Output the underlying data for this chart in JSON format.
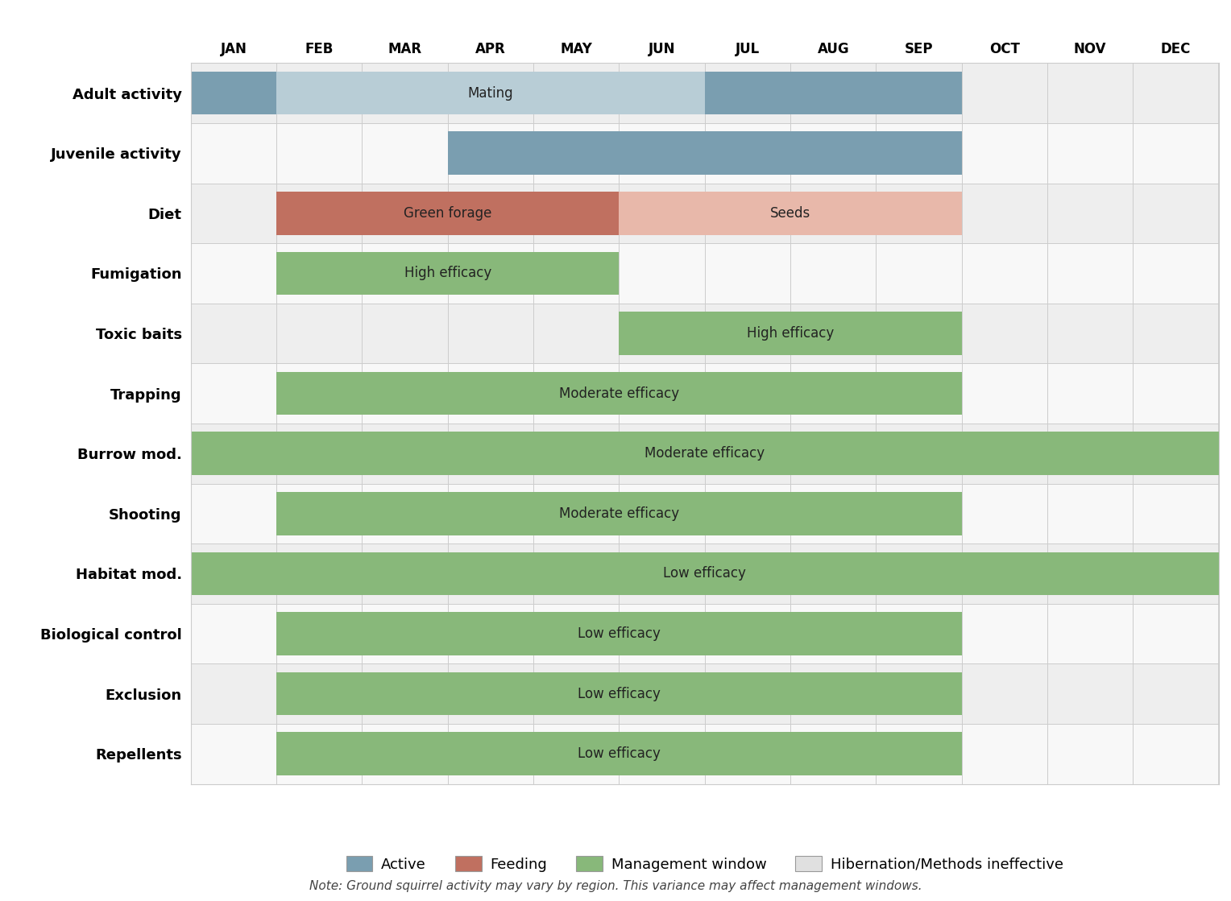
{
  "months": [
    "JAN",
    "FEB",
    "MAR",
    "APR",
    "MAY",
    "JUN",
    "JUL",
    "AUG",
    "SEP",
    "OCT",
    "NOV",
    "DEC"
  ],
  "rows": [
    {
      "label": "Adult activity",
      "bars": [
        {
          "start": 0,
          "end": 1,
          "color": "#7a9eb0",
          "text": "",
          "text_color": "#222222"
        },
        {
          "start": 1,
          "end": 6,
          "color": "#b8cdd6",
          "text": "Mating",
          "text_color": "#222222"
        },
        {
          "start": 6,
          "end": 9,
          "color": "#7a9eb0",
          "text": "",
          "text_color": "#222222"
        }
      ]
    },
    {
      "label": "Juvenile activity",
      "bars": [
        {
          "start": 3,
          "end": 9,
          "color": "#7a9eb0",
          "text": "",
          "text_color": "#222222"
        }
      ]
    },
    {
      "label": "Diet",
      "bars": [
        {
          "start": 1,
          "end": 5,
          "color": "#c07060",
          "text": "Green forage",
          "text_color": "#222222"
        },
        {
          "start": 5,
          "end": 9,
          "color": "#e8b8aa",
          "text": "Seeds",
          "text_color": "#222222"
        }
      ]
    },
    {
      "label": "Fumigation",
      "bars": [
        {
          "start": 1,
          "end": 5,
          "color": "#88b87a",
          "text": "High efficacy",
          "text_color": "#222222"
        }
      ]
    },
    {
      "label": "Toxic baits",
      "bars": [
        {
          "start": 5,
          "end": 9,
          "color": "#88b87a",
          "text": "High efficacy",
          "text_color": "#222222"
        }
      ]
    },
    {
      "label": "Trapping",
      "bars": [
        {
          "start": 1,
          "end": 9,
          "color": "#88b87a",
          "text": "Moderate efficacy",
          "text_color": "#222222"
        }
      ]
    },
    {
      "label": "Burrow mod.",
      "bars": [
        {
          "start": 0,
          "end": 12,
          "color": "#88b87a",
          "text": "Moderate efficacy",
          "text_color": "#222222"
        }
      ]
    },
    {
      "label": "Shooting",
      "bars": [
        {
          "start": 1,
          "end": 9,
          "color": "#88b87a",
          "text": "Moderate efficacy",
          "text_color": "#222222"
        }
      ]
    },
    {
      "label": "Habitat mod.",
      "bars": [
        {
          "start": 0,
          "end": 12,
          "color": "#88b87a",
          "text": "Low efficacy",
          "text_color": "#222222"
        }
      ]
    },
    {
      "label": "Biological control",
      "bars": [
        {
          "start": 1,
          "end": 9,
          "color": "#88b87a",
          "text": "Low efficacy",
          "text_color": "#222222"
        }
      ]
    },
    {
      "label": "Exclusion",
      "bars": [
        {
          "start": 1,
          "end": 9,
          "color": "#88b87a",
          "text": "Low efficacy",
          "text_color": "#222222"
        }
      ]
    },
    {
      "label": "Repellents",
      "bars": [
        {
          "start": 1,
          "end": 9,
          "color": "#88b87a",
          "text": "Low efficacy",
          "text_color": "#222222"
        }
      ]
    }
  ],
  "row_bg_colors": [
    "#eeeeee",
    "#f8f8f8",
    "#eeeeee",
    "#f8f8f8",
    "#eeeeee",
    "#f8f8f8",
    "#eeeeee",
    "#f8f8f8",
    "#eeeeee",
    "#f8f8f8",
    "#eeeeee",
    "#f8f8f8"
  ],
  "grid_color": "#cccccc",
  "bar_height": 0.72,
  "legend": [
    {
      "label": "Active",
      "color": "#7a9eb0"
    },
    {
      "label": "Feeding",
      "color": "#c07060"
    },
    {
      "label": "Management window",
      "color": "#88b87a"
    },
    {
      "label": "Hibernation/Methods ineffective",
      "color": "#e0e0e0"
    }
  ],
  "note": "Note: Ground squirrel activity may vary by region. This variance may affect management windows.",
  "label_fontsize": 13,
  "month_fontsize": 12,
  "bar_fontsize": 12
}
